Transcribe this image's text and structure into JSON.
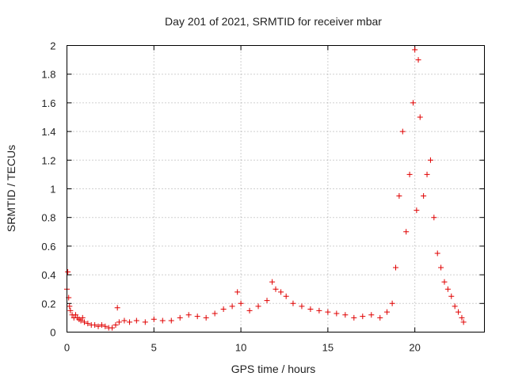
{
  "chart_data": {
    "type": "scatter",
    "title": "Day 201 of 2021, SRMTID for receiver mbar",
    "xlabel": "GPS time / hours",
    "ylabel": "SRMTID / TECUs",
    "xlim": [
      0,
      24
    ],
    "ylim": [
      0,
      2
    ],
    "x_ticks": [
      0,
      5,
      10,
      15,
      20
    ],
    "x_tick_labels": [
      "0",
      "5",
      "10",
      "15",
      "20"
    ],
    "y_ticks": [
      0,
      0.2,
      0.4,
      0.6,
      0.8,
      1,
      1.2,
      1.4,
      1.6,
      1.8,
      2
    ],
    "y_tick_labels": [
      "0",
      "0.2",
      "0.4",
      "0.6",
      "0.8",
      "1",
      "1.2",
      "1.4",
      "1.6",
      "1.8",
      "2"
    ],
    "grid": true,
    "marker": "plus",
    "series": [
      {
        "name": "SRMTID",
        "color": "#e00000",
        "x": [
          0.0,
          0.05,
          0.1,
          0.15,
          0.2,
          0.3,
          0.4,
          0.5,
          0.6,
          0.7,
          0.8,
          0.9,
          1.0,
          1.2,
          1.4,
          1.6,
          1.8,
          2.0,
          2.2,
          2.4,
          2.6,
          2.8,
          2.9,
          3.0,
          3.3,
          3.6,
          4.0,
          4.5,
          5.0,
          5.5,
          6.0,
          6.5,
          7.0,
          7.5,
          8.0,
          8.5,
          9.0,
          9.5,
          9.8,
          10.0,
          10.5,
          11.0,
          11.5,
          11.8,
          12.0,
          12.3,
          12.6,
          13.0,
          13.5,
          14.0,
          14.5,
          15.0,
          15.5,
          16.0,
          16.5,
          17.0,
          17.5,
          18.0,
          18.4,
          18.7,
          18.9,
          19.1,
          19.3,
          19.5,
          19.7,
          19.9,
          20.0,
          20.1,
          20.2,
          20.3,
          20.5,
          20.7,
          20.9,
          21.1,
          21.3,
          21.5,
          21.7,
          21.9,
          22.1,
          22.3,
          22.5,
          22.7,
          22.8
        ],
        "y": [
          0.3,
          0.42,
          0.24,
          0.18,
          0.15,
          0.12,
          0.1,
          0.12,
          0.1,
          0.09,
          0.08,
          0.1,
          0.07,
          0.06,
          0.05,
          0.05,
          0.04,
          0.05,
          0.04,
          0.03,
          0.03,
          0.05,
          0.17,
          0.07,
          0.08,
          0.07,
          0.08,
          0.07,
          0.09,
          0.08,
          0.08,
          0.1,
          0.12,
          0.11,
          0.1,
          0.13,
          0.16,
          0.18,
          0.28,
          0.2,
          0.15,
          0.18,
          0.22,
          0.35,
          0.3,
          0.28,
          0.25,
          0.2,
          0.18,
          0.16,
          0.15,
          0.14,
          0.13,
          0.12,
          0.1,
          0.11,
          0.12,
          0.1,
          0.14,
          0.2,
          0.45,
          0.95,
          1.4,
          0.7,
          1.1,
          1.6,
          1.97,
          0.85,
          1.9,
          1.5,
          0.95,
          1.1,
          1.2,
          0.8,
          0.55,
          0.45,
          0.35,
          0.3,
          0.25,
          0.18,
          0.14,
          0.1,
          0.07
        ]
      }
    ]
  }
}
